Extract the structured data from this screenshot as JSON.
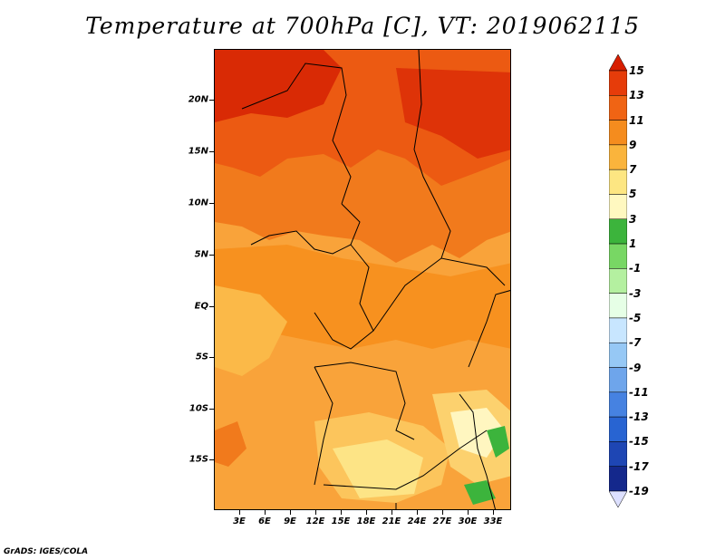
{
  "title": "Temperature at 700hPa [C], VT: 2019062115",
  "credit": "GrADS: IGES/COLA",
  "y_axis": [
    "20N",
    "15N",
    "10N",
    "5N",
    "EQ",
    "5S",
    "10S",
    "15S"
  ],
  "x_axis": [
    "3E",
    "6E",
    "9E",
    "12E",
    "15E",
    "18E",
    "21E",
    "24E",
    "27E",
    "30E",
    "33E"
  ],
  "colorbar": {
    "labels": [
      "15",
      "13",
      "11",
      "9",
      "7",
      "5",
      "3",
      "1",
      "-1",
      "-3",
      "-5",
      "-7",
      "-9",
      "-11",
      "-13",
      "-15",
      "-17",
      "-19"
    ],
    "colors": [
      "#d71e00",
      "#e63c0a",
      "#f06414",
      "#f58c1e",
      "#fab43c",
      "#fde682",
      "#fff8c0",
      "#3cb43c",
      "#78d764",
      "#b4f0a0",
      "#e6ffe6",
      "#c8e6ff",
      "#96c8f5",
      "#6ea5eb",
      "#4682e1",
      "#2864d2",
      "#1e46b4",
      "#14288c",
      "#0a0a5a"
    ]
  }
}
